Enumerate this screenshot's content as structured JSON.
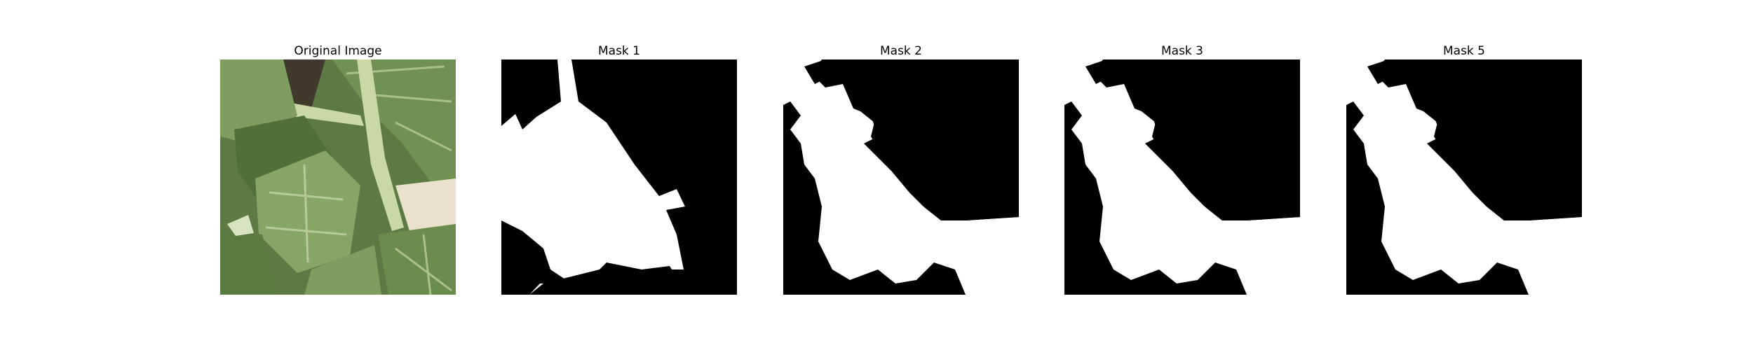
{
  "panels": [
    {
      "title": "Original Image",
      "kind": "photo"
    },
    {
      "title": "Mask 1",
      "kind": "mask"
    },
    {
      "title": "Mask 2",
      "kind": "mask"
    },
    {
      "title": "Mask 3",
      "kind": "mask"
    },
    {
      "title": "Mask 5",
      "kind": "mask"
    }
  ],
  "colors": {
    "background": "#ffffff",
    "mask_foreground": "#ffffff",
    "mask_background": "#000000",
    "leaf_dark": "#4f7038",
    "leaf_mid": "#7e9d5e",
    "leaf_light": "#a9c08a",
    "stem": "#c9d8a4",
    "soil": "#3f3a2c"
  }
}
